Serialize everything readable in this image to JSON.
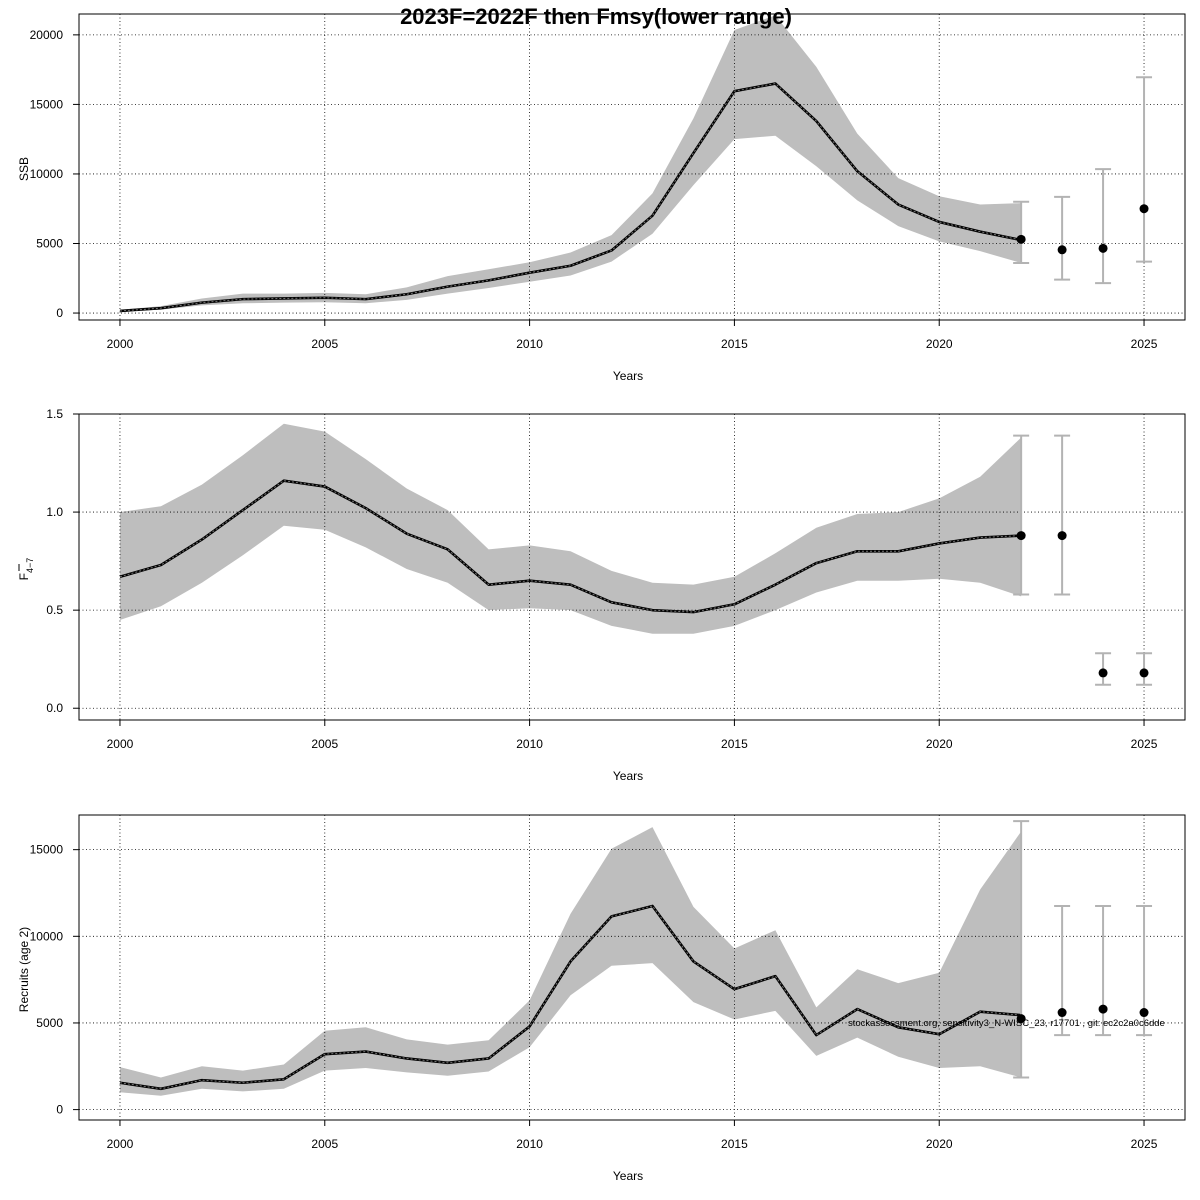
{
  "title": "2023F=2022F then Fmsy(lower range)",
  "footnote": "stockassessment.org, sensitivity3_N-WISC_23, r17701 , git: ec2c2a0c6dde",
  "colors": {
    "band": "#bebebe",
    "line": "#000000",
    "errorbar": "#b3b3b3",
    "point": "#000000",
    "grid": "#000000"
  },
  "chart_data": [
    {
      "type": "line",
      "id": "ssb",
      "ylabel": "SSB",
      "xlabel": "Years",
      "xlim": [
        1999,
        2026
      ],
      "ylim": [
        -500,
        21500
      ],
      "xticks": [
        2000,
        2005,
        2010,
        2015,
        2020,
        2025
      ],
      "yticks": [
        0,
        5000,
        10000,
        15000,
        20000
      ],
      "grid": true,
      "x": [
        2000,
        2001,
        2002,
        2003,
        2004,
        2005,
        2006,
        2007,
        2008,
        2009,
        2010,
        2011,
        2012,
        2013,
        2014,
        2015,
        2016,
        2017,
        2018,
        2019,
        2020,
        2021,
        2022
      ],
      "estimate": [
        150,
        350,
        750,
        1000,
        1050,
        1100,
        1000,
        1350,
        1900,
        2350,
        2900,
        3400,
        4500,
        7000,
        11500,
        15950,
        16500,
        13800,
        10200,
        7800,
        6550,
        5850,
        5250
      ],
      "lower": [
        90,
        250,
        550,
        700,
        750,
        780,
        700,
        950,
        1400,
        1800,
        2250,
        2700,
        3700,
        5700,
        9200,
        12500,
        12750,
        10550,
        8100,
        6250,
        5150,
        4450,
        3600
      ],
      "upper": [
        230,
        500,
        1050,
        1400,
        1400,
        1450,
        1350,
        1850,
        2650,
        3150,
        3650,
        4350,
        5600,
        8600,
        14000,
        20350,
        21400,
        17700,
        12900,
        9700,
        8400,
        7800,
        7900
      ],
      "forecast": [
        {
          "x": 2022,
          "value": 5300,
          "low": 3600,
          "high": 8000
        },
        {
          "x": 2023,
          "value": 4550,
          "low": 2400,
          "high": 8350
        },
        {
          "x": 2024,
          "value": 4650,
          "low": 2150,
          "high": 10350
        },
        {
          "x": 2025,
          "value": 7500,
          "low": 3700,
          "high": 16950
        }
      ]
    },
    {
      "type": "line",
      "id": "fbar",
      "ylabel": "F",
      "ylabel_sub": "4−7",
      "xlabel": "Years",
      "xlim": [
        1999,
        2026
      ],
      "ylim": [
        -0.06,
        1.5
      ],
      "xticks": [
        2000,
        2005,
        2010,
        2015,
        2020,
        2025
      ],
      "yticks": [
        0.0,
        0.5,
        1.0,
        1.5
      ],
      "ytick_labels": [
        "0.0",
        "0.5",
        "1.0",
        "1.5"
      ],
      "grid": true,
      "x": [
        2000,
        2001,
        2002,
        2003,
        2004,
        2005,
        2006,
        2007,
        2008,
        2009,
        2010,
        2011,
        2012,
        2013,
        2014,
        2015,
        2016,
        2017,
        2018,
        2019,
        2020,
        2021,
        2022
      ],
      "estimate": [
        0.67,
        0.73,
        0.86,
        1.01,
        1.16,
        1.13,
        1.02,
        0.89,
        0.81,
        0.63,
        0.65,
        0.63,
        0.54,
        0.5,
        0.49,
        0.53,
        0.63,
        0.74,
        0.8,
        0.8,
        0.84,
        0.87,
        0.88
      ],
      "lower": [
        0.45,
        0.52,
        0.64,
        0.78,
        0.93,
        0.91,
        0.82,
        0.71,
        0.64,
        0.5,
        0.51,
        0.5,
        0.42,
        0.38,
        0.38,
        0.42,
        0.5,
        0.59,
        0.65,
        0.65,
        0.66,
        0.64,
        0.57
      ],
      "upper": [
        1.0,
        1.03,
        1.14,
        1.29,
        1.45,
        1.41,
        1.27,
        1.12,
        1.01,
        0.81,
        0.83,
        0.8,
        0.7,
        0.64,
        0.63,
        0.67,
        0.79,
        0.92,
        0.99,
        1.0,
        1.07,
        1.18,
        1.38
      ],
      "forecast": [
        {
          "x": 2022,
          "value": 0.88,
          "low": 0.58,
          "high": 1.39
        },
        {
          "x": 2023,
          "value": 0.88,
          "low": 0.58,
          "high": 1.39
        },
        {
          "x": 2024,
          "value": 0.18,
          "low": 0.12,
          "high": 0.28
        },
        {
          "x": 2025,
          "value": 0.18,
          "low": 0.12,
          "high": 0.28
        }
      ]
    },
    {
      "type": "line",
      "id": "recruits",
      "ylabel": "Recruits (age 2)",
      "xlabel": "Years",
      "xlim": [
        1999,
        2026
      ],
      "ylim": [
        -600,
        17000
      ],
      "xticks": [
        2000,
        2005,
        2010,
        2015,
        2020,
        2025
      ],
      "yticks": [
        0,
        5000,
        10000,
        15000
      ],
      "grid": true,
      "x": [
        2000,
        2001,
        2002,
        2003,
        2004,
        2005,
        2006,
        2007,
        2008,
        2009,
        2010,
        2011,
        2012,
        2013,
        2014,
        2015,
        2016,
        2017,
        2018,
        2019,
        2020,
        2021,
        2022
      ],
      "estimate": [
        1550,
        1200,
        1700,
        1550,
        1750,
        3200,
        3350,
        2950,
        2700,
        2950,
        4800,
        8550,
        11150,
        11750,
        8550,
        6950,
        7700,
        4300,
        5800,
        4750,
        4350,
        5650,
        5450
      ],
      "lower": [
        1000,
        800,
        1200,
        1050,
        1200,
        2250,
        2400,
        2150,
        1950,
        2200,
        3600,
        6600,
        8300,
        8450,
        6200,
        5200,
        5700,
        3100,
        4150,
        3050,
        2400,
        2500,
        1850
      ],
      "upper": [
        2450,
        1850,
        2500,
        2250,
        2600,
        4550,
        4750,
        4050,
        3750,
        4000,
        6300,
        11300,
        15050,
        16300,
        11700,
        9300,
        10350,
        5900,
        8100,
        7300,
        7900,
        12700,
        16050
      ],
      "forecast": [
        {
          "x": 2022,
          "value": 5250,
          "low": 1850,
          "high": 16650
        },
        {
          "x": 2023,
          "value": 5600,
          "low": 4300,
          "high": 11750
        },
        {
          "x": 2024,
          "value": 5800,
          "low": 4300,
          "high": 11750
        },
        {
          "x": 2025,
          "value": 5600,
          "low": 4300,
          "high": 11750
        }
      ]
    }
  ]
}
